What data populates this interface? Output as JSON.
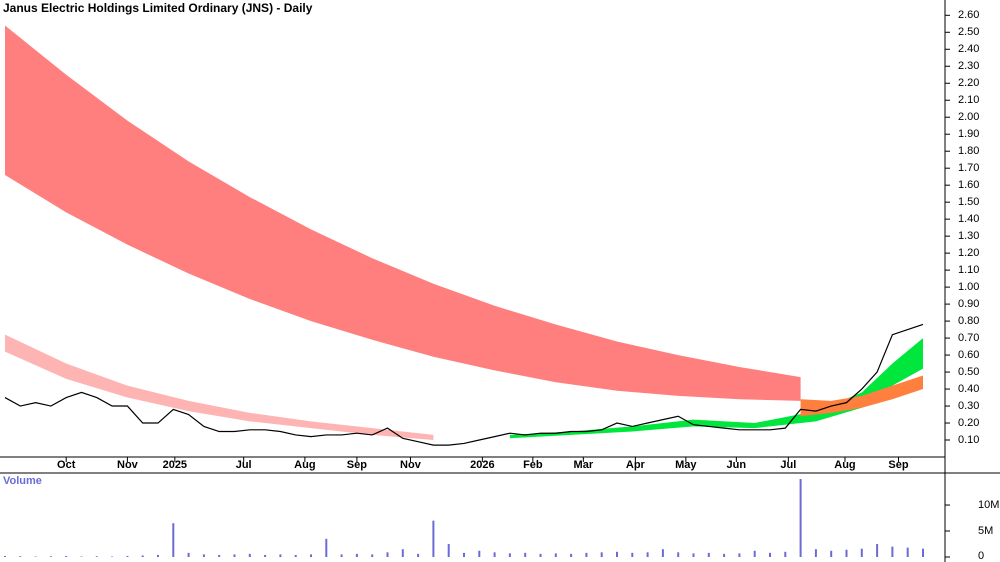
{
  "chart_data": [
    {
      "type": "price",
      "title": "Janus Electric Holdings Limited Ordinary (JNS) - Daily",
      "xlim": [
        0,
        60
      ],
      "ylim": [
        0,
        2.69
      ],
      "yticks": [
        {
          "value": 0.1,
          "label": "0.10"
        },
        {
          "value": 0.2,
          "label": "0.20"
        },
        {
          "value": 0.3,
          "label": "0.30"
        },
        {
          "value": 0.4,
          "label": "0.40"
        },
        {
          "value": 0.5,
          "label": "0.50"
        },
        {
          "value": 0.6,
          "label": "0.60"
        },
        {
          "value": 0.7,
          "label": "0.70"
        },
        {
          "value": 0.8,
          "label": "0.80"
        },
        {
          "value": 0.9,
          "label": "0.90"
        },
        {
          "value": 1,
          "label": "1.00"
        },
        {
          "value": 1.1,
          "label": "1.10"
        },
        {
          "value": 1.2,
          "label": "1.20"
        },
        {
          "value": 1.3,
          "label": "1.30"
        },
        {
          "value": 1.4,
          "label": "1.40"
        },
        {
          "value": 1.5,
          "label": "1.50"
        },
        {
          "value": 1.6,
          "label": "1.60"
        },
        {
          "value": 1.7,
          "label": "1.70"
        },
        {
          "value": 1.8,
          "label": "1.80"
        },
        {
          "value": 1.9,
          "label": "1.90"
        },
        {
          "value": 2,
          "label": "2.00"
        },
        {
          "value": 2.1,
          "label": "2.10"
        },
        {
          "value": 2.2,
          "label": "2.20"
        },
        {
          "value": 2.3,
          "label": "2.30"
        },
        {
          "value": 2.4,
          "label": "2.40"
        },
        {
          "value": 2.5,
          "label": "2.50"
        },
        {
          "value": 2.6,
          "label": "2.60"
        }
      ],
      "xticks": [
        {
          "value": 4,
          "label": "Oct"
        },
        {
          "value": 8,
          "label": "Nov"
        },
        {
          "value": 11.1,
          "label": "2025"
        },
        {
          "value": 15.6,
          "label": "Jul"
        },
        {
          "value": 19.6,
          "label": "Aug"
        },
        {
          "value": 23,
          "label": "Sep"
        },
        {
          "value": 26.5,
          "label": "Nov"
        },
        {
          "value": 31.2,
          "label": "2026"
        },
        {
          "value": 34.5,
          "label": "Feb"
        },
        {
          "value": 37.8,
          "label": "Mar"
        },
        {
          "value": 41.2,
          "label": "Apr"
        },
        {
          "value": 44.5,
          "label": "May"
        },
        {
          "value": 47.8,
          "label": "Jun"
        },
        {
          "value": 51.2,
          "label": "Jul"
        },
        {
          "value": 54.9,
          "label": "Aug"
        },
        {
          "value": 58.4,
          "label": "Sep"
        }
      ],
      "bands": [
        {
          "color": "#ff7f7f",
          "x": [
            0,
            4,
            8,
            12,
            16,
            20,
            24,
            28,
            32,
            36,
            40,
            44,
            48,
            52
          ],
          "upper": [
            2.54,
            2.25,
            1.98,
            1.74,
            1.53,
            1.34,
            1.17,
            1.02,
            0.89,
            0.78,
            0.68,
            0.6,
            0.53,
            0.47
          ],
          "lower": [
            1.66,
            1.44,
            1.25,
            1.08,
            0.93,
            0.8,
            0.69,
            0.59,
            0.51,
            0.44,
            0.39,
            0.36,
            0.34,
            0.33
          ]
        },
        {
          "color": "#ffb4b4",
          "x": [
            0,
            4,
            8,
            12,
            16,
            20,
            24,
            28
          ],
          "upper": [
            0.72,
            0.55,
            0.42,
            0.33,
            0.26,
            0.21,
            0.17,
            0.13
          ],
          "lower": [
            0.62,
            0.46,
            0.35,
            0.27,
            0.21,
            0.17,
            0.13,
            0.1
          ]
        },
        {
          "color": "#00e63c",
          "x": [
            33,
            37,
            41,
            45,
            49,
            53,
            56,
            58,
            60
          ],
          "upper": [
            0.13,
            0.15,
            0.18,
            0.22,
            0.2,
            0.27,
            0.38,
            0.55,
            0.7
          ],
          "lower": [
            0.11,
            0.13,
            0.15,
            0.18,
            0.17,
            0.21,
            0.29,
            0.42,
            0.52
          ]
        },
        {
          "color": "#ff7f3f",
          "x": [
            52,
            54,
            56,
            58,
            60
          ],
          "upper": [
            0.34,
            0.33,
            0.36,
            0.42,
            0.48
          ],
          "lower": [
            0.24,
            0.26,
            0.29,
            0.34,
            0.4
          ]
        }
      ],
      "series": [
        {
          "color": "#000000",
          "values": [
            0.35,
            0.3,
            0.32,
            0.3,
            0.35,
            0.38,
            0.35,
            0.3,
            0.3,
            0.2,
            0.2,
            0.28,
            0.25,
            0.18,
            0.15,
            0.15,
            0.16,
            0.16,
            0.15,
            0.13,
            0.12,
            0.13,
            0.13,
            0.14,
            0.13,
            0.17,
            0.11,
            0.09,
            0.07,
            0.07,
            0.08,
            0.1,
            0.12,
            0.14,
            0.13,
            0.14,
            0.14,
            0.15,
            0.15,
            0.16,
            0.2,
            0.18,
            0.2,
            0.22,
            0.24,
            0.19,
            0.18,
            0.17,
            0.16,
            0.16,
            0.16,
            0.17,
            0.28,
            0.27,
            0.3,
            0.32,
            0.4,
            0.5,
            0.72,
            0.75,
            0.78
          ]
        }
      ]
    },
    {
      "type": "volume",
      "title": "Volume",
      "xlim": [
        0,
        60
      ],
      "ylim": [
        0,
        15200000
      ],
      "yticks": [
        0,
        {
          "value": 5000000,
          "label": "5M"
        },
        {
          "value": 10000000,
          "label": "10M"
        }
      ],
      "color": "#6b6bd6",
      "values": [
        200000,
        150000,
        100000,
        150000,
        200000,
        100000,
        150000,
        100000,
        200000,
        300000,
        400000,
        6500000,
        800000,
        500000,
        400000,
        500000,
        600000,
        400000,
        500000,
        400000,
        500000,
        3500000,
        500000,
        600000,
        500000,
        900000,
        1500000,
        600000,
        7000000,
        2500000,
        800000,
        1200000,
        900000,
        700000,
        800000,
        600000,
        700000,
        600000,
        800000,
        900000,
        1000000,
        800000,
        900000,
        1500000,
        900000,
        700000,
        800000,
        600000,
        700000,
        1200000,
        800000,
        1000000,
        15000000,
        1500000,
        1200000,
        1400000,
        1600000,
        2500000,
        2000000,
        1800000,
        1600000
      ]
    }
  ]
}
